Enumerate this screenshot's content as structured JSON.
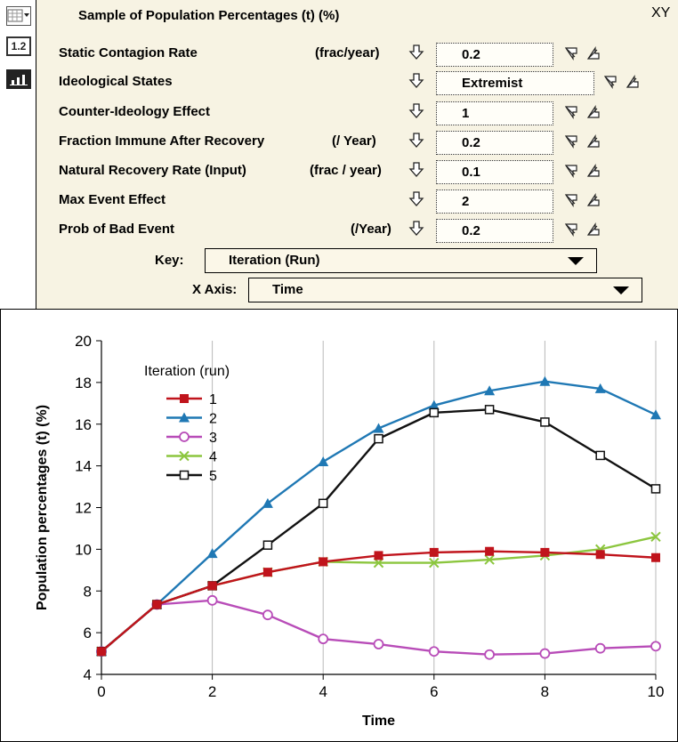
{
  "panel": {
    "title": "Sample of Population Percentages (t) (%)",
    "xy_label": "XY",
    "toolbar_num_label": "1.2"
  },
  "params": [
    {
      "label": "Static Contagion Rate",
      "unit": "(frac/year)",
      "value": "0.2"
    },
    {
      "label": "Ideological States",
      "unit": "",
      "value": "Extremist"
    },
    {
      "label": "Counter-Ideology Effect",
      "unit": "",
      "value": "1"
    },
    {
      "label": "Fraction  Immune After Recovery",
      "unit": "(/ Year)",
      "value": "0.2"
    },
    {
      "label": "Natural Recovery Rate (Input)",
      "unit": "(frac / year)",
      "value": "0.1"
    },
    {
      "label": "Max Event Effect",
      "unit": "",
      "value": "2"
    },
    {
      "label": "Prob of Bad Event",
      "unit": "(/Year)",
      "value": "0.2"
    }
  ],
  "selects": {
    "key_label": "Key:",
    "key_value": "Iteration (Run)",
    "xaxis_label": "X Axis:",
    "xaxis_value": "Time"
  },
  "chart_data": {
    "type": "line",
    "xlabel": "Time",
    "ylabel": "Population percentages (t) (%)",
    "legend_title": "Iteration (run)",
    "legend_position": "top-left",
    "xlim": [
      0,
      10
    ],
    "ylim": [
      4,
      20
    ],
    "x_ticks": [
      0,
      2,
      4,
      6,
      8,
      10
    ],
    "y_ticks": [
      4,
      6,
      8,
      10,
      12,
      14,
      16,
      18,
      20
    ],
    "vertical_grid": true,
    "x": [
      0,
      1,
      2,
      3,
      4,
      5,
      6,
      7,
      8,
      9,
      10
    ],
    "series": [
      {
        "name": "1",
        "color": "#c0141c",
        "marker": "square-filled",
        "values": [
          5.1,
          7.35,
          8.25,
          8.9,
          9.4,
          9.7,
          9.85,
          9.9,
          9.85,
          9.75,
          9.6
        ]
      },
      {
        "name": "2",
        "color": "#1f78b4",
        "marker": "triangle",
        "values": [
          5.1,
          7.35,
          9.8,
          12.2,
          14.2,
          15.8,
          16.9,
          17.6,
          18.05,
          17.7,
          16.45
        ]
      },
      {
        "name": "3",
        "color": "#b84cb8",
        "marker": "circle-open",
        "values": [
          5.1,
          7.35,
          7.55,
          6.85,
          5.7,
          5.45,
          5.1,
          4.95,
          5.0,
          5.25,
          5.35
        ]
      },
      {
        "name": "4",
        "color": "#8cc63f",
        "marker": "x",
        "values": [
          5.1,
          7.35,
          8.25,
          8.9,
          9.4,
          9.35,
          9.35,
          9.5,
          9.7,
          10.0,
          10.6
        ]
      },
      {
        "name": "5",
        "color": "#111111",
        "marker": "square-open",
        "values": [
          5.1,
          7.35,
          8.25,
          10.2,
          12.2,
          15.3,
          16.55,
          16.7,
          16.1,
          14.5,
          12.9
        ]
      }
    ]
  }
}
